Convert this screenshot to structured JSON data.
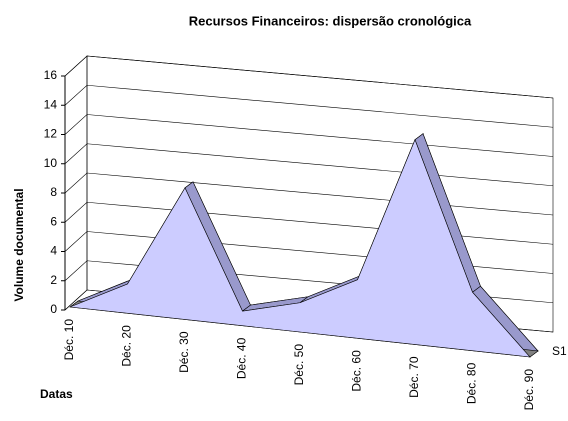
{
  "chart_data": {
    "type": "area",
    "title": "Recursos Financeiros: dispersão cronológica",
    "y_label": "Volume documental",
    "x_label": "Datas",
    "categories": [
      "Déc. 10",
      "Déc. 20",
      "Déc. 30",
      "Déc. 40",
      "Déc. 50",
      "Déc. 60",
      "Déc. 70",
      "Déc. 80",
      "Déc. 90"
    ],
    "series": [
      {
        "name": "S1",
        "color": "#ccccff",
        "values": [
          0,
          2,
          9,
          1,
          2,
          4,
          14,
          4,
          0
        ]
      }
    ],
    "ylim": [
      0,
      16
    ],
    "yticks": [
      0,
      2,
      4,
      6,
      8,
      10,
      12,
      14,
      16
    ],
    "grid": true
  }
}
